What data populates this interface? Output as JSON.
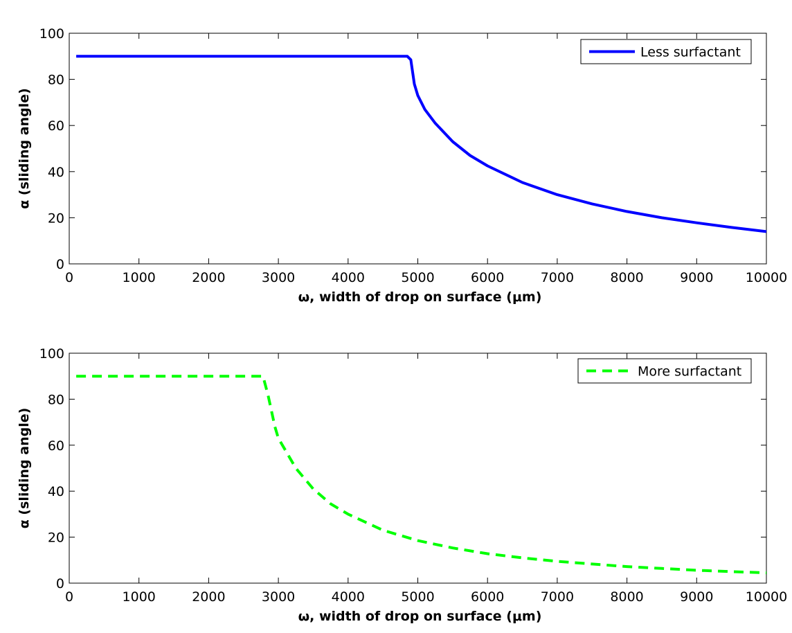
{
  "chart_data": [
    {
      "type": "line",
      "xlabel": "ω, width of drop on surface (μm)",
      "ylabel": "α (sliding angle)",
      "xlim": [
        0,
        10000
      ],
      "ylim": [
        0,
        100
      ],
      "xticks": [
        0,
        1000,
        2000,
        3000,
        4000,
        5000,
        6000,
        7000,
        8000,
        9000,
        10000
      ],
      "yticks": [
        0,
        20,
        40,
        60,
        80,
        100
      ],
      "grid": false,
      "legend_position": "top-right",
      "series": [
        {
          "name": "Less surfactant",
          "color": "#0000ff",
          "style": "solid",
          "x": [
            100,
            500,
            1000,
            2000,
            3000,
            4000,
            4850,
            4900,
            4950,
            5000,
            5100,
            5250,
            5500,
            5750,
            6000,
            6500,
            7000,
            7500,
            8000,
            8500,
            9000,
            9500,
            10000
          ],
          "y": [
            90,
            90,
            90,
            90,
            90,
            90,
            90,
            88.5,
            78,
            73,
            67,
            61,
            53,
            47,
            42.5,
            35.3,
            30,
            26,
            22.7,
            20,
            17.8,
            15.8,
            14
          ]
        }
      ]
    },
    {
      "type": "line",
      "xlabel": "ω, width of drop on surface (μm)",
      "ylabel": "α (sliding angle)",
      "xlim": [
        0,
        10000
      ],
      "ylim": [
        0,
        100
      ],
      "xticks": [
        0,
        1000,
        2000,
        3000,
        4000,
        5000,
        6000,
        7000,
        8000,
        9000,
        10000
      ],
      "yticks": [
        0,
        20,
        40,
        60,
        80,
        100
      ],
      "grid": false,
      "legend_position": "top-right",
      "series": [
        {
          "name": "More surfactant",
          "color": "#00ff00",
          "style": "dashed",
          "x": [
            100,
            500,
            1000,
            2000,
            2780,
            2850,
            2950,
            3000,
            3250,
            3500,
            3750,
            4000,
            4500,
            5000,
            5500,
            6000,
            6500,
            7000,
            7500,
            8000,
            8500,
            9000,
            9500,
            10000
          ],
          "y": [
            90,
            90,
            90,
            90,
            90,
            82,
            68,
            63,
            50,
            41,
            34.5,
            30,
            23,
            18.5,
            15.3,
            12.8,
            11,
            9.5,
            8.3,
            7.2,
            6.4,
            5.6,
            5,
            4.5
          ]
        }
      ]
    }
  ]
}
